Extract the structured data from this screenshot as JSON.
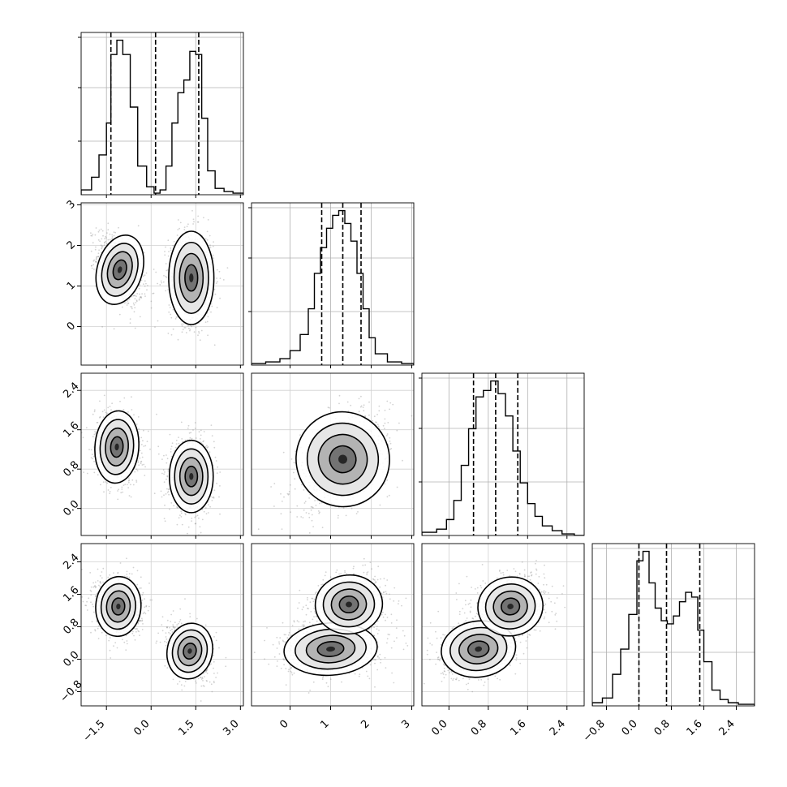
{
  "chart_data": {
    "type": "corner",
    "grid": true,
    "variables": [
      {
        "ticks": [
          -1.5,
          0.0,
          1.5,
          3.0
        ],
        "tick_labels": [
          "−1.5",
          "0.0",
          "1.5",
          "3.0"
        ],
        "range": [
          -2.35,
          3.1
        ],
        "quantiles": [
          -1.35,
          0.15,
          1.6
        ],
        "histogram": {
          "edges": [
            -2.35,
            -2.0,
            -1.75,
            -1.5,
            -1.35,
            -1.15,
            -0.95,
            -0.7,
            -0.45,
            -0.15,
            0.1,
            0.3,
            0.5,
            0.7,
            0.9,
            1.1,
            1.3,
            1.5,
            1.7,
            1.9,
            2.15,
            2.45,
            2.75,
            3.1
          ],
          "counts": [
            0.03,
            0.11,
            0.25,
            0.45,
            0.88,
            0.97,
            0.88,
            0.55,
            0.18,
            0.05,
            0.01,
            0.03,
            0.18,
            0.45,
            0.64,
            0.72,
            0.9,
            0.88,
            0.48,
            0.15,
            0.04,
            0.02,
            0.01
          ]
        }
      },
      {
        "ticks": [
          0,
          1,
          2,
          3
        ],
        "tick_labels": [
          "0",
          "1",
          "2",
          "3"
        ],
        "range": [
          -0.95,
          3.05
        ],
        "quantiles": [
          0.78,
          1.3,
          1.75
        ],
        "histogram": {
          "edges": [
            -0.95,
            -0.6,
            -0.25,
            0.0,
            0.25,
            0.45,
            0.6,
            0.75,
            0.9,
            1.05,
            1.2,
            1.35,
            1.5,
            1.65,
            1.8,
            1.95,
            2.1,
            2.4,
            2.75,
            3.05
          ],
          "counts": [
            0.01,
            0.02,
            0.04,
            0.09,
            0.19,
            0.35,
            0.57,
            0.73,
            0.85,
            0.93,
            0.96,
            0.88,
            0.77,
            0.57,
            0.35,
            0.17,
            0.07,
            0.02,
            0.01
          ]
        }
      },
      {
        "ticks": [
          0.0,
          0.8,
          1.6,
          2.4
        ],
        "tick_labels": [
          "0.0",
          "0.8",
          "1.6",
          "2.4"
        ],
        "range": [
          -0.55,
          2.75
        ],
        "quantiles": [
          0.5,
          0.95,
          1.4
        ],
        "histogram": {
          "edges": [
            -0.55,
            -0.25,
            -0.05,
            0.1,
            0.25,
            0.4,
            0.55,
            0.7,
            0.85,
            1.0,
            1.15,
            1.3,
            1.45,
            1.6,
            1.75,
            1.9,
            2.1,
            2.3,
            2.55,
            2.75
          ],
          "counts": [
            0.02,
            0.04,
            0.1,
            0.22,
            0.44,
            0.67,
            0.87,
            0.91,
            0.97,
            0.89,
            0.75,
            0.53,
            0.33,
            0.2,
            0.12,
            0.06,
            0.03,
            0.01,
            0.0
          ]
        }
      },
      {
        "ticks": [
          -0.8,
          0.0,
          0.8,
          1.6,
          2.4
        ],
        "tick_labels": [
          "−0.8",
          "0.0",
          "0.8",
          "1.6",
          "2.4"
        ],
        "range": [
          -1.15,
          2.85
        ],
        "quantiles": [
          0.0,
          0.68,
          1.5
        ],
        "histogram": {
          "edges": [
            -1.15,
            -0.9,
            -0.65,
            -0.45,
            -0.25,
            -0.05,
            0.1,
            0.25,
            0.4,
            0.55,
            0.7,
            0.85,
            1.0,
            1.15,
            1.3,
            1.45,
            1.6,
            1.8,
            2.0,
            2.2,
            2.45,
            2.85
          ],
          "counts": [
            0.02,
            0.05,
            0.2,
            0.36,
            0.58,
            0.92,
            0.98,
            0.78,
            0.62,
            0.54,
            0.52,
            0.57,
            0.66,
            0.72,
            0.69,
            0.48,
            0.28,
            0.1,
            0.04,
            0.02,
            0.01
          ]
        }
      }
    ],
    "panels_2d": [
      {
        "row": 1,
        "col": 0,
        "modes": [
          {
            "cx": -1.05,
            "cy": 1.4,
            "sx": 0.33,
            "sy": 0.38,
            "r": -0.4,
            "w": 1.0
          },
          {
            "cx": 1.35,
            "cy": 1.2,
            "sx": 0.33,
            "sy": 0.5,
            "r": 0.0,
            "w": 1.0
          }
        ]
      },
      {
        "row": 2,
        "col": 0,
        "modes": [
          {
            "cx": -1.15,
            "cy": 1.25,
            "sx": 0.32,
            "sy": 0.32,
            "r": -0.1,
            "w": 1.0
          },
          {
            "cx": 1.35,
            "cy": 0.65,
            "sx": 0.32,
            "sy": 0.32,
            "r": 0.0,
            "w": 1.0
          }
        ]
      },
      {
        "row": 2,
        "col": 1,
        "modes": [
          {
            "cx": 1.3,
            "cy": 1.0,
            "sx": 0.5,
            "sy": 0.42,
            "r": 0.45,
            "w": 1.0
          }
        ]
      },
      {
        "row": 3,
        "col": 0,
        "modes": [
          {
            "cx": -1.1,
            "cy": 1.3,
            "sx": 0.33,
            "sy": 0.32,
            "r": -0.1,
            "w": 1.0
          },
          {
            "cx": 1.3,
            "cy": 0.2,
            "sx": 0.33,
            "sy": 0.3,
            "r": -0.3,
            "w": 1.0
          }
        ]
      },
      {
        "row": 3,
        "col": 1,
        "modes": [
          {
            "cx": 1.0,
            "cy": 0.25,
            "sx": 0.5,
            "sy": 0.28,
            "r": 0.1,
            "w": 1.0
          },
          {
            "cx": 1.45,
            "cy": 1.35,
            "sx": 0.4,
            "sy": 0.35,
            "r": 0.1,
            "w": 0.9
          }
        ]
      },
      {
        "row": 3,
        "col": 2,
        "modes": [
          {
            "cx": 0.6,
            "cy": 0.25,
            "sx": 0.33,
            "sy": 0.3,
            "r": 0.2,
            "w": 1.0
          },
          {
            "cx": 1.25,
            "cy": 1.3,
            "sx": 0.32,
            "sy": 0.35,
            "r": 0.2,
            "w": 0.9
          }
        ]
      }
    ]
  }
}
